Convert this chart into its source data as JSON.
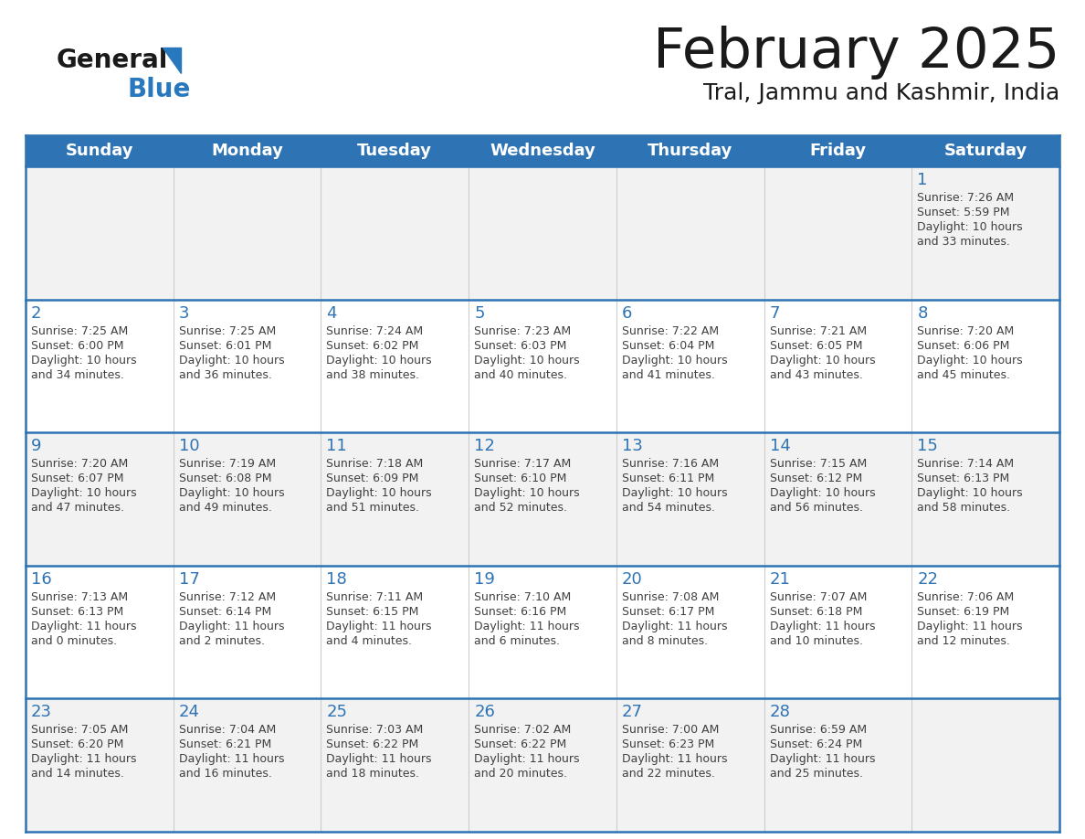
{
  "title": "February 2025",
  "subtitle": "Tral, Jammu and Kashmir, India",
  "days_of_week": [
    "Sunday",
    "Monday",
    "Tuesday",
    "Wednesday",
    "Thursday",
    "Friday",
    "Saturday"
  ],
  "header_bg": "#2E74B5",
  "header_text": "#FFFFFF",
  "cell_bg_odd": "#F2F2F2",
  "cell_bg_even": "#FFFFFF",
  "divider_color": "#2E74B5",
  "day_num_color": "#2E74B5",
  "text_color": "#404040",
  "title_color": "#1a1a1a",
  "logo_general_color": "#1a1a1a",
  "logo_blue_color": "#2878BE",
  "logo_triangle_color": "#2878BE",
  "calendar_data": [
    [
      null,
      null,
      null,
      null,
      null,
      null,
      {
        "day": 1,
        "sunrise": "7:26 AM",
        "sunset": "5:59 PM",
        "daylight": "10 hours",
        "daylight2": "and 33 minutes."
      }
    ],
    [
      {
        "day": 2,
        "sunrise": "7:25 AM",
        "sunset": "6:00 PM",
        "daylight": "10 hours",
        "daylight2": "and 34 minutes."
      },
      {
        "day": 3,
        "sunrise": "7:25 AM",
        "sunset": "6:01 PM",
        "daylight": "10 hours",
        "daylight2": "and 36 minutes."
      },
      {
        "day": 4,
        "sunrise": "7:24 AM",
        "sunset": "6:02 PM",
        "daylight": "10 hours",
        "daylight2": "and 38 minutes."
      },
      {
        "day": 5,
        "sunrise": "7:23 AM",
        "sunset": "6:03 PM",
        "daylight": "10 hours",
        "daylight2": "and 40 minutes."
      },
      {
        "day": 6,
        "sunrise": "7:22 AM",
        "sunset": "6:04 PM",
        "daylight": "10 hours",
        "daylight2": "and 41 minutes."
      },
      {
        "day": 7,
        "sunrise": "7:21 AM",
        "sunset": "6:05 PM",
        "daylight": "10 hours",
        "daylight2": "and 43 minutes."
      },
      {
        "day": 8,
        "sunrise": "7:20 AM",
        "sunset": "6:06 PM",
        "daylight": "10 hours",
        "daylight2": "and 45 minutes."
      }
    ],
    [
      {
        "day": 9,
        "sunrise": "7:20 AM",
        "sunset": "6:07 PM",
        "daylight": "10 hours",
        "daylight2": "and 47 minutes."
      },
      {
        "day": 10,
        "sunrise": "7:19 AM",
        "sunset": "6:08 PM",
        "daylight": "10 hours",
        "daylight2": "and 49 minutes."
      },
      {
        "day": 11,
        "sunrise": "7:18 AM",
        "sunset": "6:09 PM",
        "daylight": "10 hours",
        "daylight2": "and 51 minutes."
      },
      {
        "day": 12,
        "sunrise": "7:17 AM",
        "sunset": "6:10 PM",
        "daylight": "10 hours",
        "daylight2": "and 52 minutes."
      },
      {
        "day": 13,
        "sunrise": "7:16 AM",
        "sunset": "6:11 PM",
        "daylight": "10 hours",
        "daylight2": "and 54 minutes."
      },
      {
        "day": 14,
        "sunrise": "7:15 AM",
        "sunset": "6:12 PM",
        "daylight": "10 hours",
        "daylight2": "and 56 minutes."
      },
      {
        "day": 15,
        "sunrise": "7:14 AM",
        "sunset": "6:13 PM",
        "daylight": "10 hours",
        "daylight2": "and 58 minutes."
      }
    ],
    [
      {
        "day": 16,
        "sunrise": "7:13 AM",
        "sunset": "6:13 PM",
        "daylight": "11 hours",
        "daylight2": "and 0 minutes."
      },
      {
        "day": 17,
        "sunrise": "7:12 AM",
        "sunset": "6:14 PM",
        "daylight": "11 hours",
        "daylight2": "and 2 minutes."
      },
      {
        "day": 18,
        "sunrise": "7:11 AM",
        "sunset": "6:15 PM",
        "daylight": "11 hours",
        "daylight2": "and 4 minutes."
      },
      {
        "day": 19,
        "sunrise": "7:10 AM",
        "sunset": "6:16 PM",
        "daylight": "11 hours",
        "daylight2": "and 6 minutes."
      },
      {
        "day": 20,
        "sunrise": "7:08 AM",
        "sunset": "6:17 PM",
        "daylight": "11 hours",
        "daylight2": "and 8 minutes."
      },
      {
        "day": 21,
        "sunrise": "7:07 AM",
        "sunset": "6:18 PM",
        "daylight": "11 hours",
        "daylight2": "and 10 minutes."
      },
      {
        "day": 22,
        "sunrise": "7:06 AM",
        "sunset": "6:19 PM",
        "daylight": "11 hours",
        "daylight2": "and 12 minutes."
      }
    ],
    [
      {
        "day": 23,
        "sunrise": "7:05 AM",
        "sunset": "6:20 PM",
        "daylight": "11 hours",
        "daylight2": "and 14 minutes."
      },
      {
        "day": 24,
        "sunrise": "7:04 AM",
        "sunset": "6:21 PM",
        "daylight": "11 hours",
        "daylight2": "and 16 minutes."
      },
      {
        "day": 25,
        "sunrise": "7:03 AM",
        "sunset": "6:22 PM",
        "daylight": "11 hours",
        "daylight2": "and 18 minutes."
      },
      {
        "day": 26,
        "sunrise": "7:02 AM",
        "sunset": "6:22 PM",
        "daylight": "11 hours",
        "daylight2": "and 20 minutes."
      },
      {
        "day": 27,
        "sunrise": "7:00 AM",
        "sunset": "6:23 PM",
        "daylight": "11 hours",
        "daylight2": "and 22 minutes."
      },
      {
        "day": 28,
        "sunrise": "6:59 AM",
        "sunset": "6:24 PM",
        "daylight": "11 hours",
        "daylight2": "and 25 minutes."
      },
      null
    ]
  ]
}
